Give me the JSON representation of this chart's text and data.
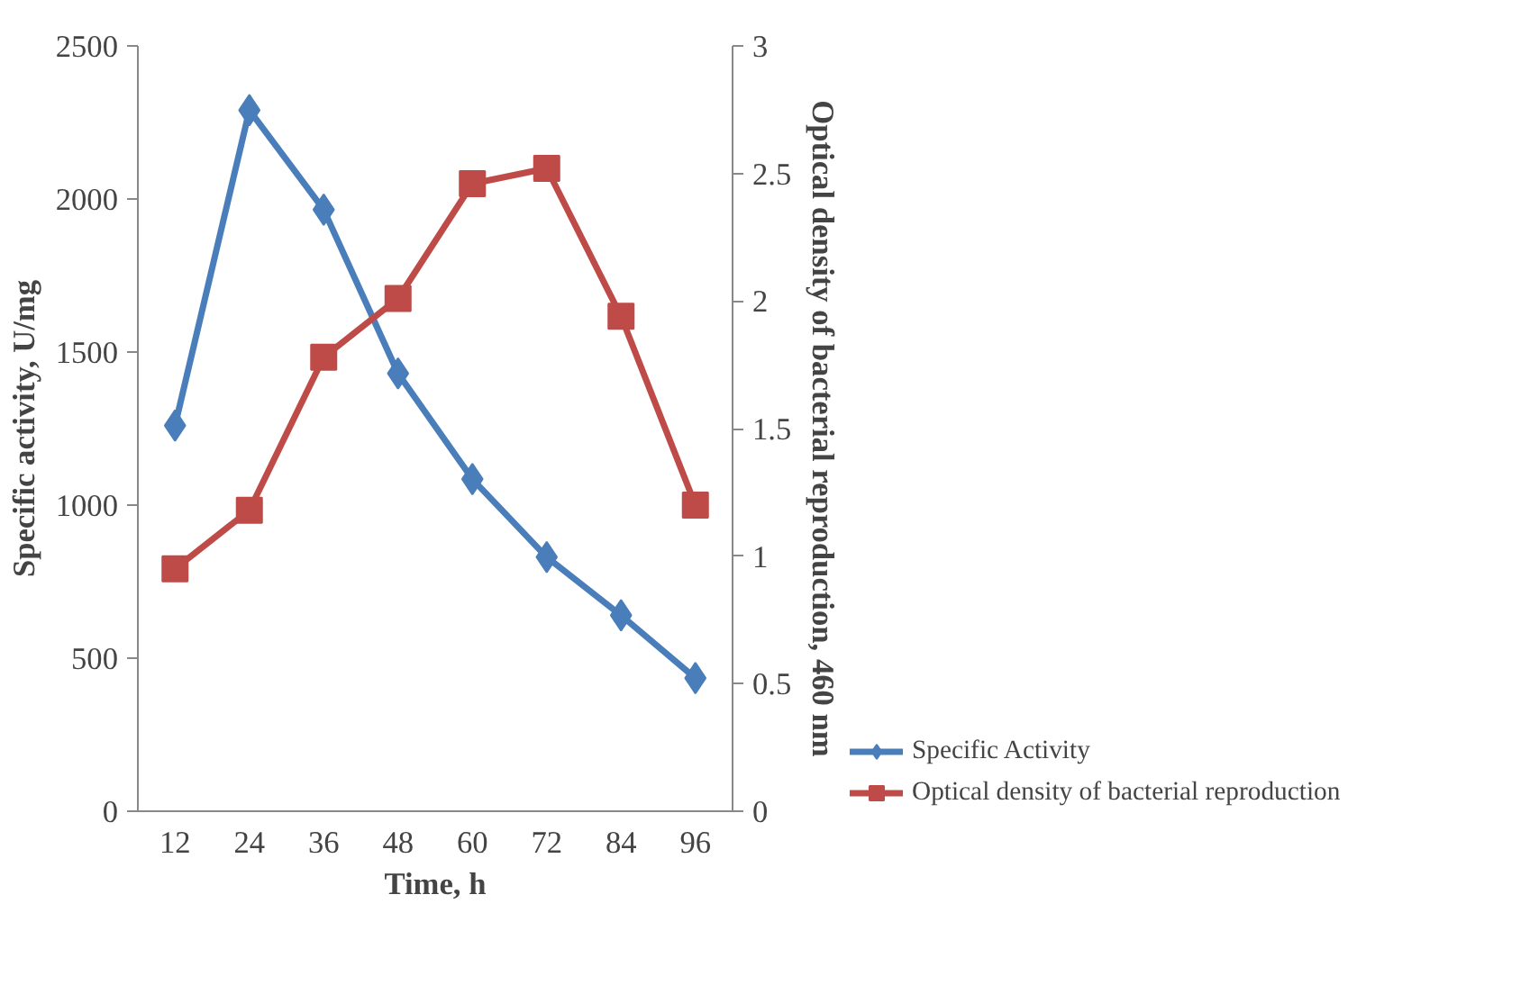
{
  "chart_data": {
    "type": "line",
    "xlabel": "Time, h",
    "ylabel": "Specific activity, U/mg",
    "y2label": "Optical density of bacterial reproduction, 460 nm",
    "categories": [
      "12",
      "24",
      "36",
      "48",
      "60",
      "72",
      "84",
      "96"
    ],
    "ylim": [
      0,
      2500
    ],
    "yticks": [
      0,
      500,
      1000,
      1500,
      2000,
      2500
    ],
    "y2lim": [
      0,
      3
    ],
    "y2ticks": [
      0,
      0.5,
      1,
      1.5,
      2,
      2.5,
      3
    ],
    "legend": "bottom right",
    "series": [
      {
        "name": "Specific Activity",
        "color": "#4a7ebb",
        "marker": "diamond",
        "values": [
          1260,
          2290,
          1965,
          1430,
          1085,
          830,
          640,
          435
        ]
      },
      {
        "name": "Optical density of bacterial reproduction",
        "color": "#be4b48",
        "marker": "square",
        "axis": "y2",
        "values": [
          0.95,
          1.18,
          1.78,
          2.01,
          2.46,
          2.52,
          1.94,
          1.2
        ]
      }
    ]
  }
}
